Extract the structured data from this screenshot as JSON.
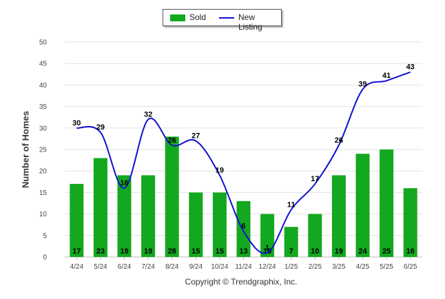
{
  "legend": {
    "sold_label": "Sold",
    "new_listing_label": "New Listing"
  },
  "copyright": "Copyright © Trendgraphix, Inc.",
  "chart_data": {
    "type": "bar",
    "title": "",
    "xlabel": "",
    "ylabel": "Number of Homes",
    "ylim": [
      0,
      50
    ],
    "yticks": [
      0,
      5,
      10,
      15,
      20,
      25,
      30,
      35,
      40,
      45,
      50
    ],
    "grid": true,
    "legend_position": "top-center",
    "categories": [
      "4/24",
      "5/24",
      "6/24",
      "7/24",
      "8/24",
      "9/24",
      "10/24",
      "11/24",
      "12/24",
      "1/25",
      "2/25",
      "3/25",
      "4/25",
      "5/25",
      "6/25"
    ],
    "series": [
      {
        "name": "Sold",
        "type": "bar",
        "color": "#13a81f",
        "values": [
          17,
          23,
          19,
          19,
          28,
          15,
          15,
          13,
          10,
          7,
          10,
          19,
          24,
          25,
          16
        ]
      },
      {
        "name": "New Listing",
        "type": "line",
        "color": "#1010d0",
        "values": [
          30,
          29,
          16,
          32,
          26,
          27,
          19,
          6,
          1,
          11,
          17,
          26,
          39,
          41,
          43
        ]
      }
    ]
  }
}
